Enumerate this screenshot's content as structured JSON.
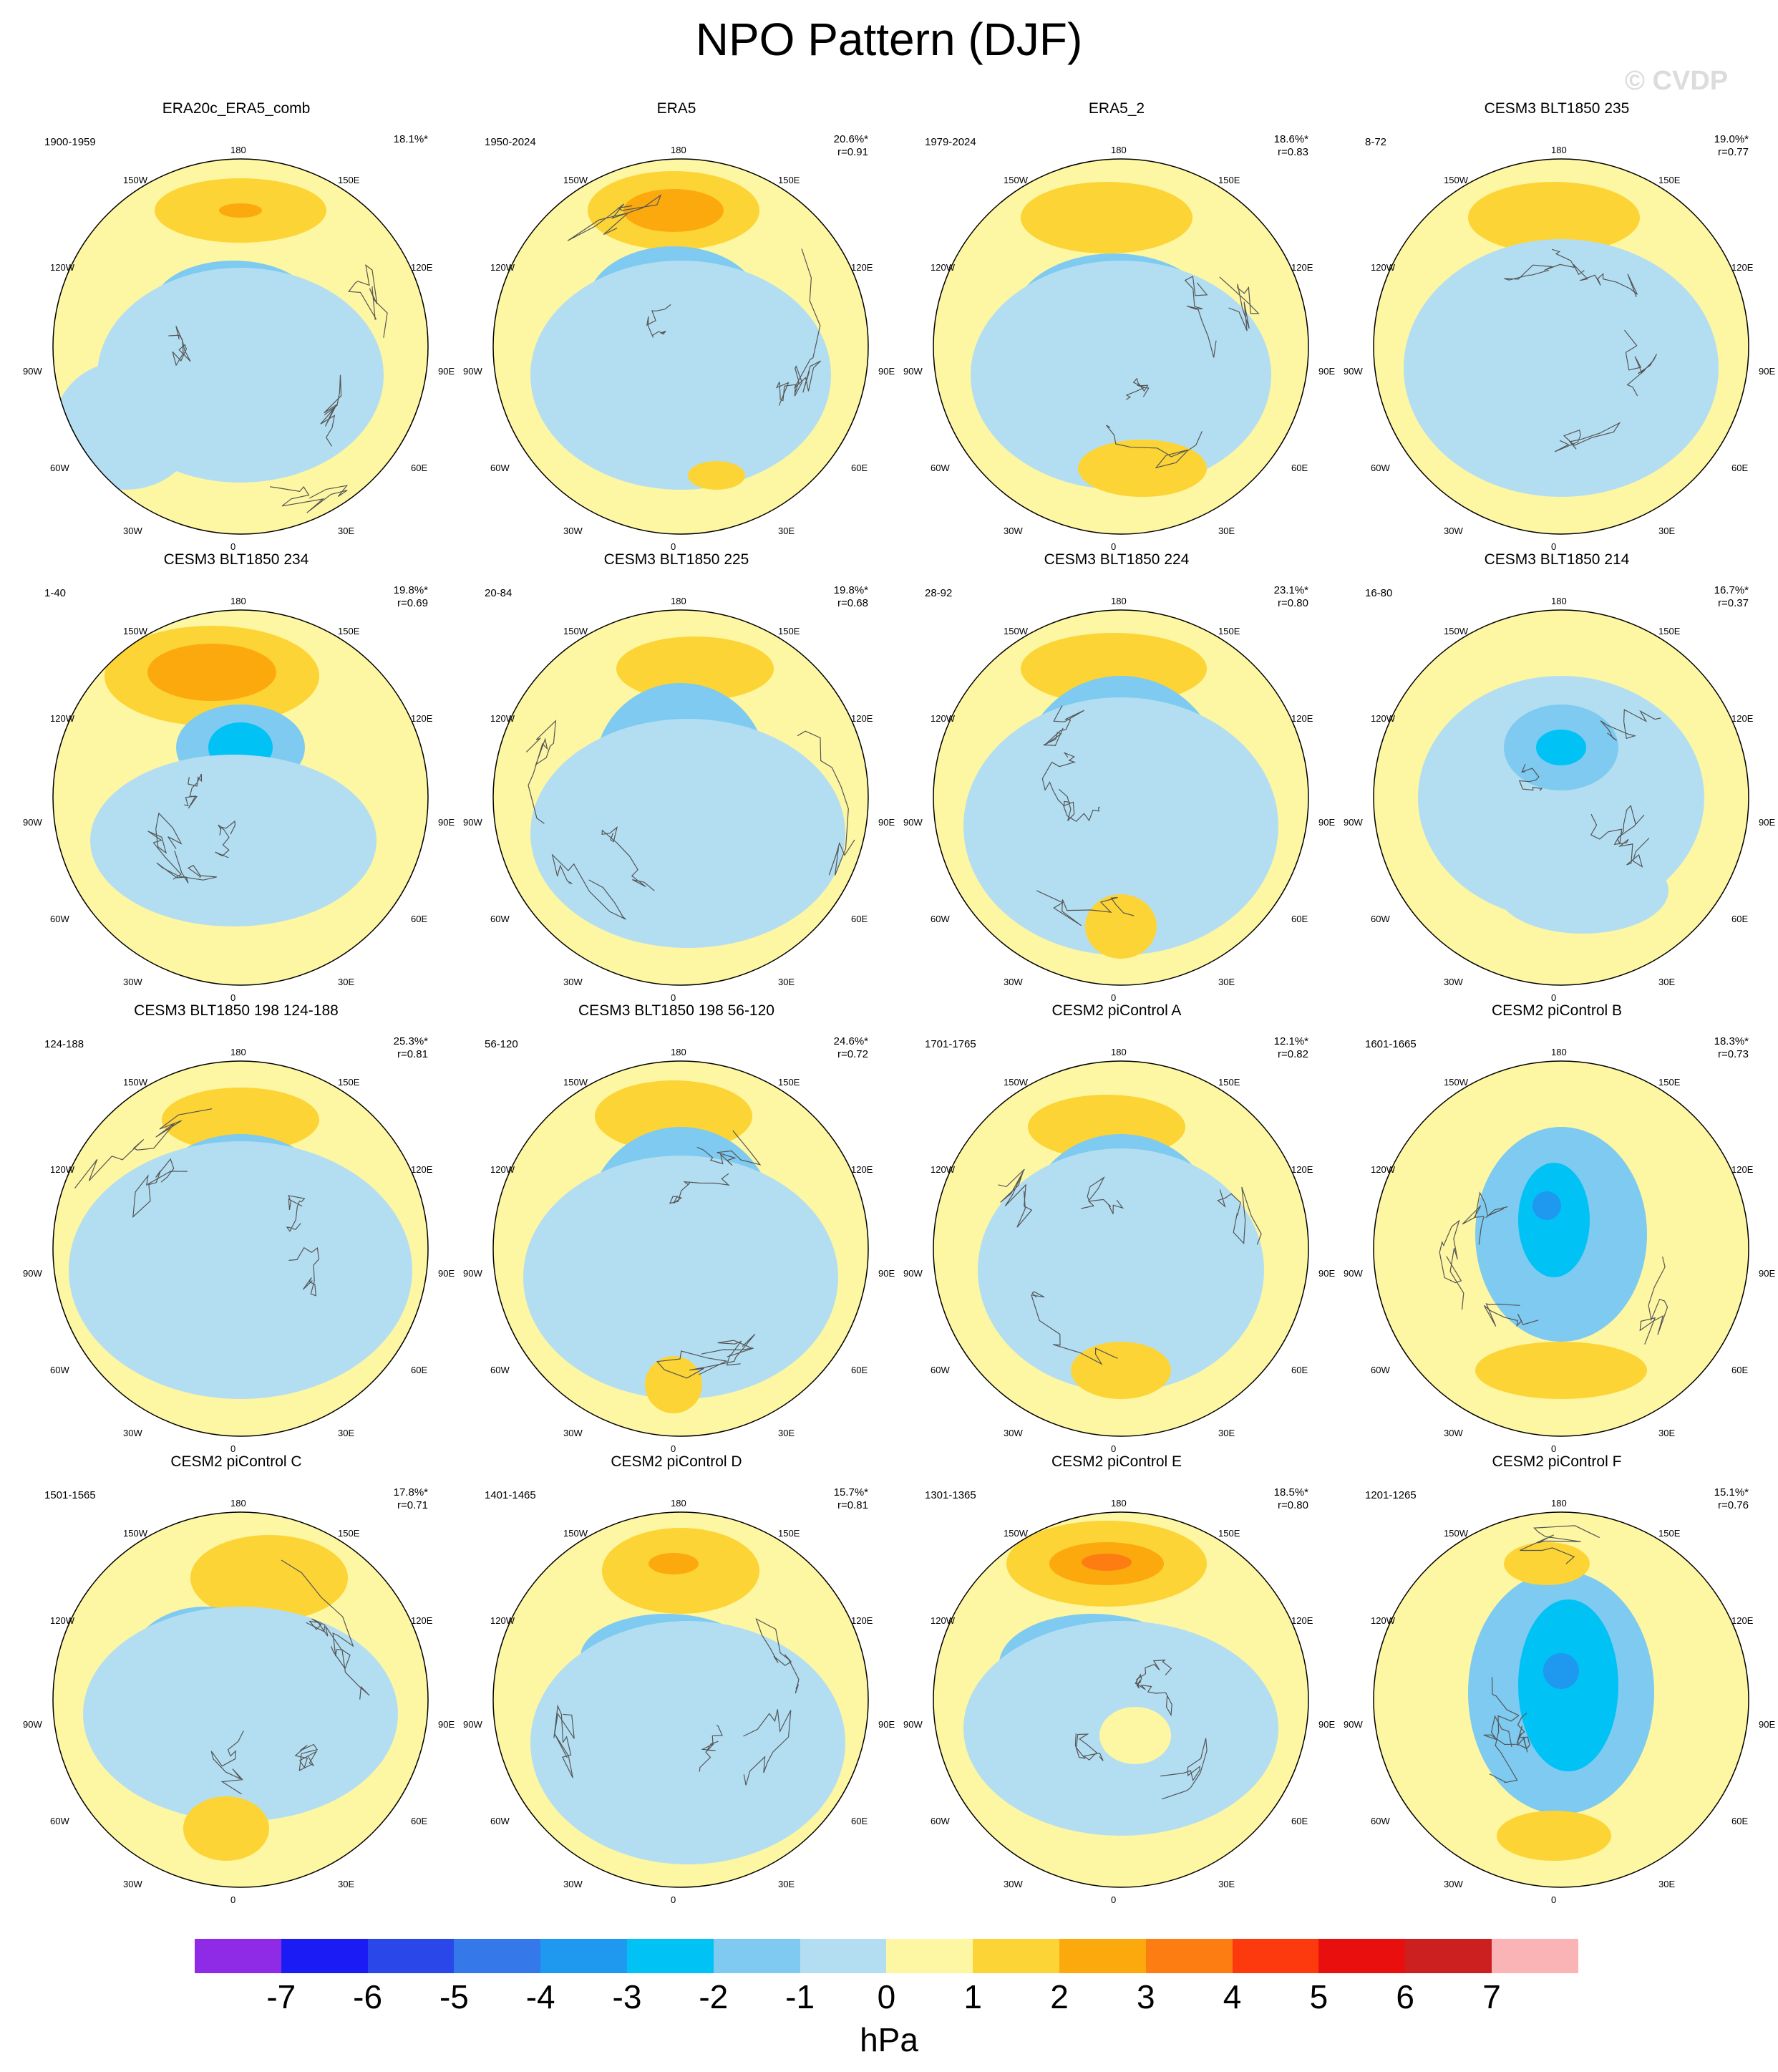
{
  "title": "NPO Pattern (DJF)",
  "watermark": "© CVDP",
  "units": "hPa",
  "lon_labels": {
    "top": "180",
    "tl": "150W",
    "tr": "150E",
    "ul": "120W",
    "ur": "120E",
    "l": "90W",
    "r": "90E",
    "ll": "60W",
    "lr": "60E",
    "bl": "30W",
    "br": "30E",
    "bottom": "0"
  },
  "colorbar": {
    "colors": [
      "#8f2be6",
      "#1b1bf5",
      "#2a48ea",
      "#3478ea",
      "#1f98f0",
      "#00c2f5",
      "#7ecaf0",
      "#b3def2",
      "#fdf6a3",
      "#fcd435",
      "#fca90e",
      "#fd7d12",
      "#fc3a0e",
      "#e90f0f",
      "#cc2020",
      "#fbb4b6"
    ],
    "ticks": [
      "-7",
      "-6",
      "-5",
      "-4",
      "-3",
      "-2",
      "-1",
      "0",
      "1",
      "2",
      "3",
      "4",
      "5",
      "6",
      "7"
    ]
  },
  "panels": [
    {
      "title": "ERA20c_ERA5_comb",
      "period": "1900-1959",
      "pct": "18.1%*",
      "r": ""
    },
    {
      "title": "ERA5",
      "period": "1950-2024",
      "pct": "20.6%*",
      "r": "r=0.91"
    },
    {
      "title": "ERA5_2",
      "period": "1979-2024",
      "pct": "18.6%*",
      "r": "r=0.83"
    },
    {
      "title": "CESM3 BLT1850 235",
      "period": "8-72",
      "pct": "19.0%*",
      "r": "r=0.77"
    },
    {
      "title": "CESM3 BLT1850 234",
      "period": "1-40",
      "pct": "19.8%*",
      "r": "r=0.69"
    },
    {
      "title": "CESM3 BLT1850 225",
      "period": "20-84",
      "pct": "19.8%*",
      "r": "r=0.68"
    },
    {
      "title": "CESM3 BLT1850 224",
      "period": "28-92",
      "pct": "23.1%*",
      "r": "r=0.80"
    },
    {
      "title": "CESM3 BLT1850 214",
      "period": "16-80",
      "pct": "16.7%*",
      "r": "r=0.37"
    },
    {
      "title": "CESM3 BLT1850 198 124-188",
      "period": "124-188",
      "pct": "25.3%*",
      "r": "r=0.81"
    },
    {
      "title": "CESM3 BLT1850 198 56-120",
      "period": "56-120",
      "pct": "24.6%*",
      "r": "r=0.72"
    },
    {
      "title": "CESM2 piControl A",
      "period": "1701-1765",
      "pct": "12.1%*",
      "r": "r=0.82"
    },
    {
      "title": "CESM2 piControl B",
      "period": "1601-1665",
      "pct": "18.3%*",
      "r": "r=0.73"
    },
    {
      "title": "CESM2 piControl C",
      "period": "1501-1565",
      "pct": "17.8%*",
      "r": "r=0.71"
    },
    {
      "title": "CESM2 piControl D",
      "period": "1401-1465",
      "pct": "15.7%*",
      "r": "r=0.81"
    },
    {
      "title": "CESM2 piControl E",
      "period": "1301-1365",
      "pct": "18.5%*",
      "r": "r=0.80"
    },
    {
      "title": "CESM2 piControl F",
      "period": "1201-1265",
      "pct": "15.1%*",
      "r": "r=0.76"
    }
  ]
}
